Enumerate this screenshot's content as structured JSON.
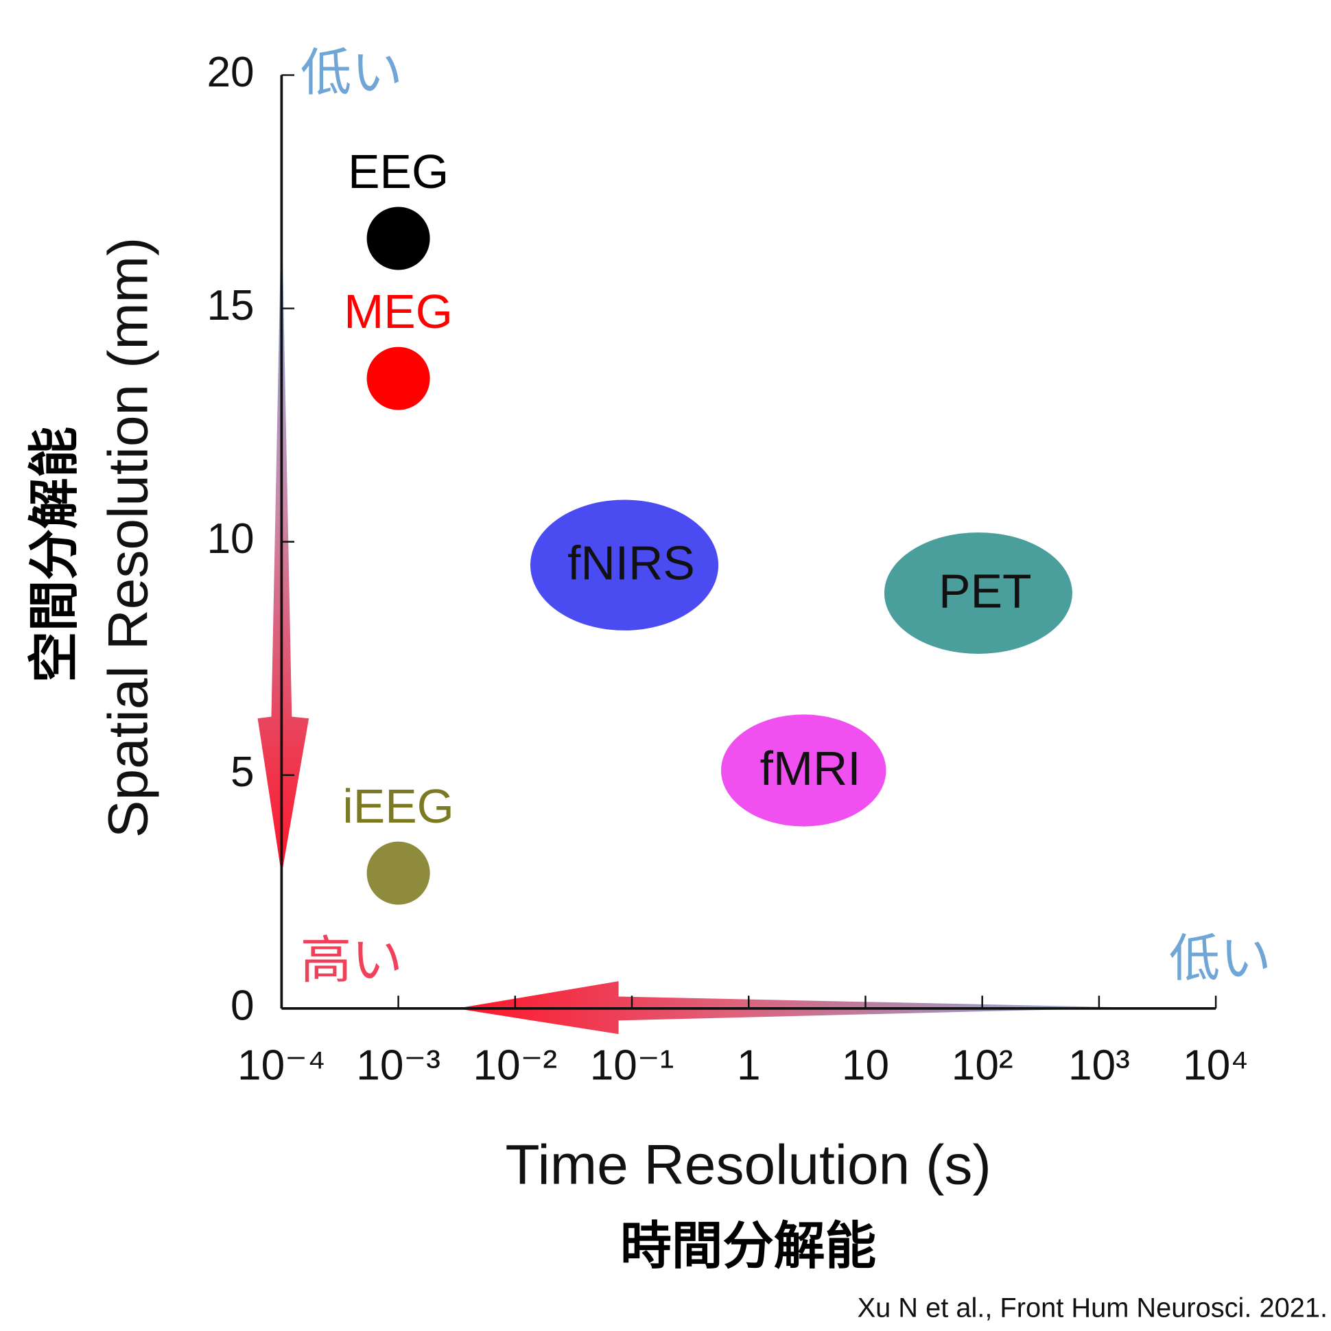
{
  "chart_data": {
    "type": "scatter",
    "x_label": "Time Resolution (s)",
    "x_label_ja": "時間分解能",
    "y_label": "Spatial Resolution (mm)",
    "y_label_ja": "空間分解能",
    "source": "Xu N et al., Front Hum Neurosci. 2021.",
    "x_log": true,
    "xlim": [
      0.0001,
      10000
    ],
    "xticks": [
      {
        "value": 0.0001,
        "label": "10⁻⁴"
      },
      {
        "value": 0.001,
        "label": "10⁻³"
      },
      {
        "value": 0.01,
        "label": "10⁻²"
      },
      {
        "value": 0.1,
        "label": "10⁻¹"
      },
      1,
      10,
      {
        "value": 100,
        "label": "10²"
      },
      {
        "value": 1000,
        "label": "10³"
      },
      {
        "value": 10000,
        "label": "10⁴"
      }
    ],
    "ylim": [
      0,
      20
    ],
    "yticks": [
      0,
      5,
      10,
      15,
      20
    ],
    "annotations": [
      {
        "text": "低い",
        "color": "#6fa6d6"
      },
      {
        "text": "高い",
        "color": "#f0405a"
      },
      {
        "text": "低い",
        "color": "#6fa6d6"
      }
    ],
    "series": [
      {
        "name": "EEG",
        "shape": "dot",
        "color": "#000000",
        "label_color": "#000000",
        "x": [
          0.001
        ],
        "values": [
          16.5
        ]
      },
      {
        "name": "MEG",
        "shape": "dot",
        "color": "#ff0000",
        "label_color": "#ff0000",
        "x": [
          0.001
        ],
        "values": [
          13.5
        ]
      },
      {
        "name": "iEEG",
        "shape": "dot",
        "color": "#8e8c3c",
        "label_color": "#7b7a22",
        "x": [
          0.001
        ],
        "values": [
          2.9
        ]
      },
      {
        "name": "fNIRS",
        "shape": "ellipse",
        "color": "#4b4bf2",
        "label_color": "#111111",
        "x_extent": [
          0.0135,
          0.55
        ],
        "y_extent": [
          8.1,
          10.9
        ]
      },
      {
        "name": "PET",
        "shape": "ellipse",
        "color": "#4a9e9c",
        "label_color": "#111111",
        "x_extent": [
          14.5,
          590
        ],
        "y_extent": [
          7.6,
          10.2
        ]
      },
      {
        "name": "fMRI",
        "shape": "ellipse",
        "color": "#f050f0",
        "label_color": "#111111",
        "x_extent": [
          0.58,
          15
        ],
        "y_extent": [
          3.9,
          6.3
        ]
      }
    ]
  }
}
